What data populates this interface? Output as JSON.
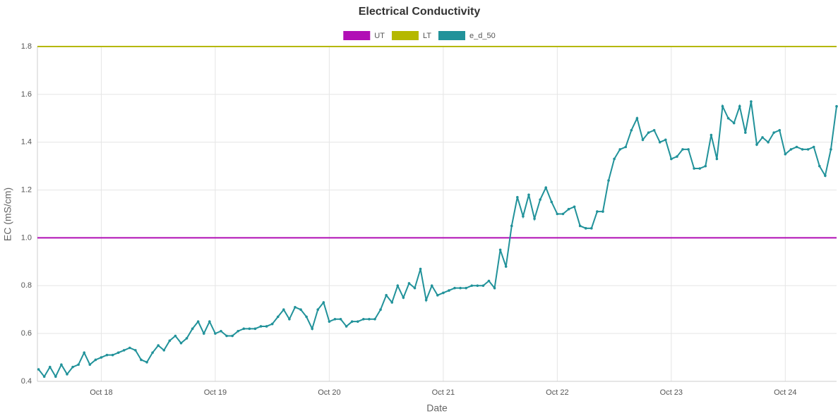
{
  "chart_data": {
    "type": "line",
    "title": "Electrical Conductivity",
    "x_label": "Date",
    "y_label": "EC (mS/cm)",
    "xlim": [
      17.44,
      24.45
    ],
    "xticks": [
      {
        "value": 18,
        "label": "Oct 18"
      },
      {
        "value": 19,
        "label": "Oct 19"
      },
      {
        "value": 20,
        "label": "Oct 20"
      },
      {
        "value": 21,
        "label": "Oct 21"
      },
      {
        "value": 22,
        "label": "Oct 22"
      },
      {
        "value": 23,
        "label": "Oct 23"
      },
      {
        "value": 24,
        "label": "Oct 24"
      }
    ],
    "ylim": [
      0.4,
      1.8
    ],
    "yticks": [
      0.4,
      0.6,
      0.8,
      1.0,
      1.2,
      1.4,
      1.6,
      1.8
    ],
    "grid": true,
    "legend": "top",
    "x": [
      17.45,
      17.5,
      17.55,
      17.6,
      17.65,
      17.7,
      17.75,
      17.8,
      17.85,
      17.9,
      17.95,
      18,
      18.05,
      18.1,
      18.15,
      18.2,
      18.25,
      18.3,
      18.35,
      18.4,
      18.45,
      18.5,
      18.55,
      18.6,
      18.65,
      18.7,
      18.75,
      18.8,
      18.85,
      18.9,
      18.95,
      19,
      19.05,
      19.1,
      19.15,
      19.2,
      19.25,
      19.3,
      19.35,
      19.4,
      19.45,
      19.5,
      19.55,
      19.6,
      19.65,
      19.7,
      19.75,
      19.8,
      19.85,
      19.9,
      19.95,
      20,
      20.05,
      20.1,
      20.15,
      20.2,
      20.25,
      20.3,
      20.35,
      20.4,
      20.45,
      20.5,
      20.55,
      20.6,
      20.65,
      20.7,
      20.75,
      20.8,
      20.85,
      20.9,
      20.95,
      21,
      21.05,
      21.1,
      21.15,
      21.2,
      21.25,
      21.3,
      21.35,
      21.4,
      21.45,
      21.5,
      21.55,
      21.6,
      21.65,
      21.7,
      21.75,
      21.8,
      21.85,
      21.9,
      21.95,
      22,
      22.05,
      22.1,
      22.15,
      22.2,
      22.25,
      22.3,
      22.35,
      22.4,
      22.45,
      22.5,
      22.55,
      22.6,
      22.65,
      22.7,
      22.75,
      22.8,
      22.85,
      22.9,
      22.95,
      23,
      23.05,
      23.1,
      23.15,
      23.2,
      23.25,
      23.3,
      23.35,
      23.4,
      23.45,
      23.5,
      23.55,
      23.6,
      23.65,
      23.7,
      23.75,
      23.8,
      23.85,
      23.9,
      23.95,
      24,
      24.05,
      24.1,
      24.15,
      24.2,
      24.25,
      24.3,
      24.35,
      24.4,
      24.45
    ],
    "series": [
      {
        "name": "UT",
        "color": "#b10fb5",
        "show_points": false,
        "x": [
          17.44,
          24.45
        ],
        "values": [
          1.0,
          1.0
        ]
      },
      {
        "name": "LT",
        "color": "#b5b800",
        "show_points": false,
        "x": [
          17.44,
          24.45
        ],
        "values": [
          1.8,
          1.8
        ]
      },
      {
        "name": "e_d_50",
        "color": "#21929a",
        "show_points": true,
        "values": [
          0.45,
          0.42,
          0.46,
          0.42,
          0.47,
          0.43,
          0.46,
          0.47,
          0.52,
          0.47,
          0.49,
          0.5,
          0.51,
          0.51,
          0.52,
          0.53,
          0.54,
          0.53,
          0.49,
          0.48,
          0.52,
          0.55,
          0.53,
          0.57,
          0.59,
          0.56,
          0.58,
          0.62,
          0.65,
          0.6,
          0.65,
          0.6,
          0.61,
          0.59,
          0.59,
          0.61,
          0.62,
          0.62,
          0.62,
          0.63,
          0.63,
          0.64,
          0.67,
          0.7,
          0.66,
          0.71,
          0.7,
          0.67,
          0.62,
          0.7,
          0.73,
          0.65,
          0.66,
          0.66,
          0.63,
          0.65,
          0.65,
          0.66,
          0.66,
          0.66,
          0.7,
          0.76,
          0.73,
          0.8,
          0.75,
          0.81,
          0.79,
          0.87,
          0.74,
          0.8,
          0.76,
          0.77,
          0.78,
          0.79,
          0.79,
          0.79,
          0.8,
          0.8,
          0.8,
          0.82,
          0.79,
          0.95,
          0.88,
          1.05,
          1.17,
          1.09,
          1.18,
          1.08,
          1.16,
          1.21,
          1.15,
          1.1,
          1.1,
          1.12,
          1.13,
          1.05,
          1.04,
          1.04,
          1.11,
          1.11,
          1.24,
          1.33,
          1.37,
          1.38,
          1.45,
          1.5,
          1.41,
          1.44,
          1.45,
          1.4,
          1.41,
          1.33,
          1.34,
          1.37,
          1.37,
          1.29,
          1.29,
          1.3,
          1.43,
          1.33,
          1.55,
          1.5,
          1.48,
          1.55,
          1.44,
          1.57,
          1.39,
          1.42,
          1.4,
          1.44,
          1.45,
          1.35,
          1.37,
          1.38,
          1.37,
          1.37,
          1.38,
          1.3,
          1.26,
          1.37,
          1.55
        ]
      }
    ]
  }
}
